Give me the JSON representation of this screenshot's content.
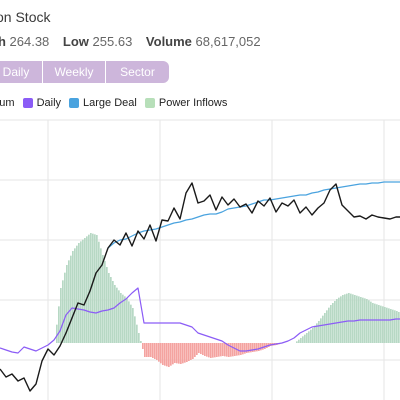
{
  "header": {
    "title": "on Stock",
    "stats": [
      {
        "label": "gh",
        "value": "264.38"
      },
      {
        "label": "Low",
        "value": "255.63"
      },
      {
        "label": "Volume",
        "value": "68,617,052"
      }
    ]
  },
  "tabs": [
    "Daily",
    "Weekly",
    "Sector"
  ],
  "legend": [
    {
      "label": "entum",
      "color": ""
    },
    {
      "label": "Daily",
      "color": "#8b5cf6"
    },
    {
      "label": "Large Deal",
      "color": "#4aa3df"
    },
    {
      "label": "Power Inflows",
      "color": "#b7dfb9"
    }
  ],
  "colors": {
    "price": "#1a1a1a",
    "daily": "#8b5cf6",
    "large_deal": "#4aa3df",
    "inflow_positive": "#b7d8c4",
    "inflow_negative": "#f4a3a0",
    "grid": "#e6e6e6"
  },
  "chart_data": {
    "type": "line",
    "x": [
      0,
      6,
      12,
      18,
      24,
      30,
      36,
      42,
      48,
      54,
      60,
      66,
      72,
      78,
      84,
      90,
      96,
      102,
      108,
      114,
      120,
      126,
      132,
      138,
      144,
      150,
      156,
      162,
      168,
      174,
      180,
      186,
      192,
      198,
      204,
      210,
      216,
      222,
      228,
      234,
      240,
      246,
      252,
      258,
      264,
      270,
      276,
      282,
      288,
      294,
      300,
      306,
      312,
      318,
      324,
      330,
      336,
      342,
      348,
      354,
      360,
      366,
      372,
      378,
      384,
      390,
      396,
      400
    ],
    "series": [
      {
        "name": "Daily",
        "role": "price",
        "values": [
          -26,
          -34,
          -31,
          -38,
          -35,
          -48,
          -41,
          -18,
          -6,
          -12,
          -3,
          10,
          25,
          40,
          38,
          52,
          70,
          78,
          95,
          103,
          98,
          110,
          97,
          112,
          104,
          118,
          102,
          123,
          122,
          135,
          124,
          150,
          160,
          140,
          142,
          148,
          133,
          146,
          138,
          144,
          136,
          139,
          130,
          142,
          137,
          145,
          131,
          140,
          137,
          143,
          130,
          136,
          128,
          135,
          140,
          153,
          159,
          138,
          132,
          126,
          127,
          124,
          128,
          126,
          125,
          124,
          126,
          126
        ]
      },
      {
        "name": "Daily",
        "role": "daily",
        "values": [
          -5,
          -7,
          -9,
          -10,
          -4,
          -6,
          -8,
          -5,
          -2,
          3,
          12,
          28,
          35,
          34,
          33,
          31,
          30,
          32,
          33,
          35,
          40,
          44,
          50,
          55,
          20,
          20,
          20,
          20,
          20,
          20,
          20,
          18,
          16,
          10,
          8,
          6,
          4,
          2,
          -2,
          -5,
          -8,
          -8,
          -7,
          -6,
          -4,
          -2,
          -1,
          0,
          2,
          5,
          10,
          13,
          16,
          17,
          18,
          19,
          20,
          21,
          22,
          22,
          23,
          23,
          23,
          23,
          23,
          23,
          24,
          24
        ]
      },
      {
        "name": "Large Deal",
        "role": "large_deal",
        "values": [
          null,
          null,
          null,
          null,
          null,
          null,
          null,
          null,
          null,
          null,
          null,
          null,
          null,
          null,
          null,
          null,
          null,
          null,
          95,
          100,
          103,
          104,
          107,
          110,
          112,
          113,
          114,
          116,
          118,
          120,
          121,
          123,
          124,
          126,
          128,
          129,
          129,
          131,
          134,
          135,
          136,
          137,
          139,
          141,
          143,
          143,
          144,
          145,
          146,
          147,
          148,
          148,
          150,
          151,
          153,
          154,
          155,
          156,
          157,
          158,
          159,
          159,
          160,
          160,
          161,
          161,
          161,
          161
        ]
      },
      {
        "name": "Power Inflows",
        "role": "inflow",
        "values": [
          0,
          0,
          0,
          0,
          0,
          0,
          0,
          0,
          0,
          0,
          55,
          78,
          92,
          100,
          105,
          110,
          108,
          88,
          70,
          58,
          50,
          45,
          35,
          10,
          -14,
          -14,
          -17,
          -22,
          -24,
          -20,
          -21,
          -19,
          -16,
          -10,
          -13,
          -15,
          -14,
          -13,
          -14,
          -13,
          -12,
          -10,
          -9,
          -8,
          -6,
          -3,
          -2,
          0,
          0,
          0,
          5,
          10,
          15,
          22,
          30,
          38,
          44,
          48,
          50,
          48,
          46,
          44,
          40,
          38,
          36,
          34,
          32,
          30
        ]
      }
    ]
  }
}
